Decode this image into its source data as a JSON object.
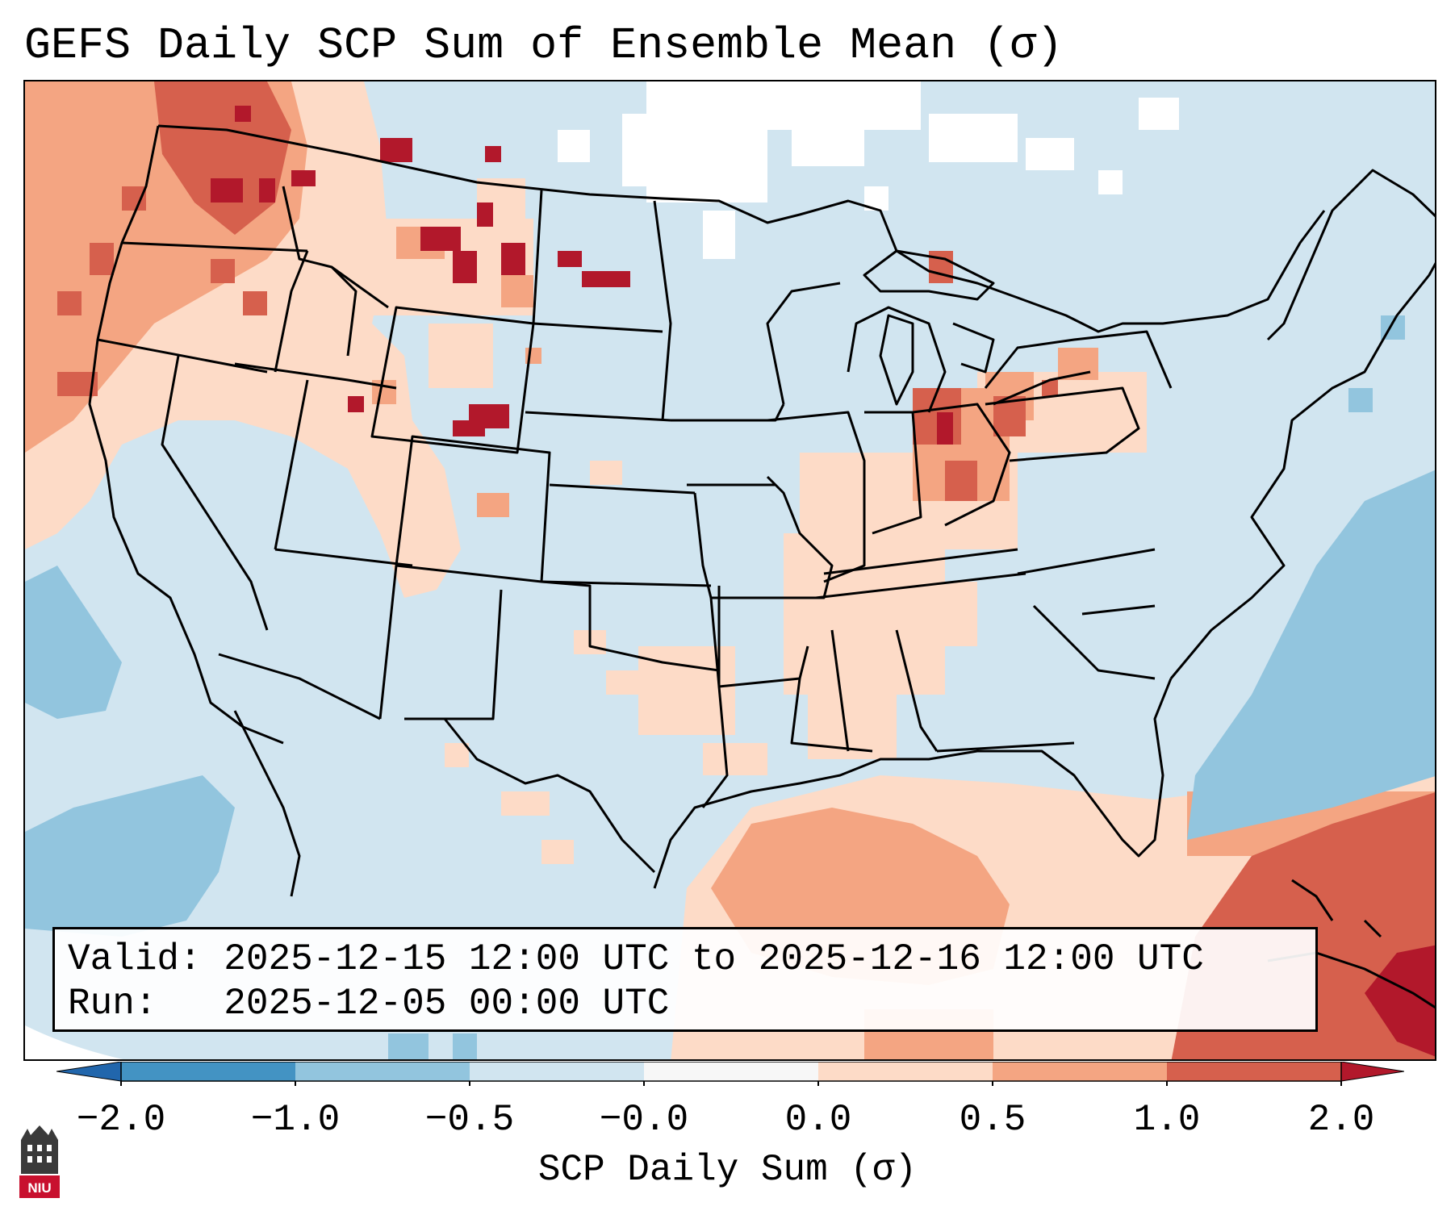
{
  "title": "GEFS Daily SCP Sum of Ensemble Mean (σ)",
  "info": {
    "valid_label": "Valid:",
    "valid_value": "2025-12-15 12:00 UTC to 2025-12-16 12:00 UTC",
    "run_label": "Run:",
    "run_value": "2025-12-05 00:00 UTC"
  },
  "colorbar": {
    "label": "SCP Daily Sum (σ)",
    "ticks": [
      "−2.0",
      "−1.0",
      "−0.5",
      "−0.0",
      "0.0",
      "0.5",
      "1.0",
      "2.0"
    ],
    "bin_colors": [
      "#4393c3",
      "#92c5de",
      "#d1e5f0",
      "#f7f7f7",
      "#fddbc7",
      "#f4a582",
      "#d6604d"
    ],
    "extend_low_color": "#2166ac",
    "extend_high_color": "#b2182b"
  },
  "logo": {
    "text": "NIU",
    "name": "Northern Illinois University"
  },
  "map": {
    "projection": "Lambert Conformal",
    "region": "Continental United States",
    "colors": {
      "neutral_blue": "#d1e5f0",
      "white": "#ffffff",
      "light_red": "#fddbc7",
      "med_red": "#f4a582",
      "red": "#d6604d",
      "dark_red": "#b2182b",
      "med_blue": "#92c5de",
      "blue": "#4393c3"
    }
  }
}
